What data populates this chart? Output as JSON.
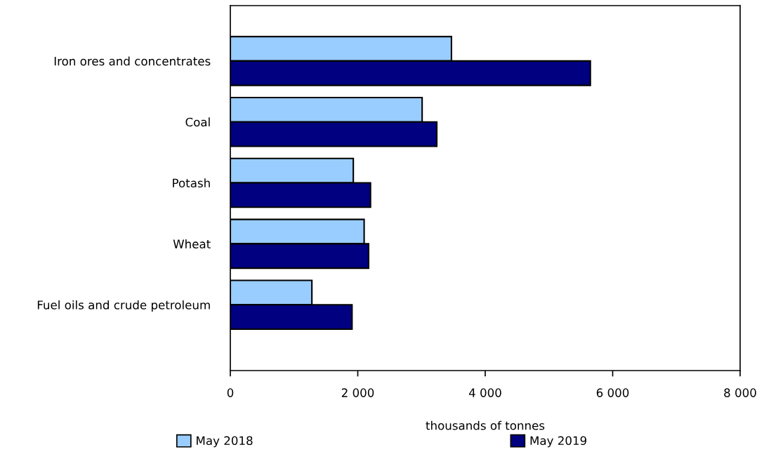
{
  "chart_data": {
    "type": "bar",
    "orientation": "horizontal",
    "categories": [
      "Iron ores and concentrates",
      "Coal",
      "Potash",
      "Wheat",
      "Fuel oils and crude petroleum"
    ],
    "series": [
      {
        "name": "May 2018",
        "color": "#99ccff",
        "values": [
          3470,
          3010,
          1930,
          2100,
          1280
        ]
      },
      {
        "name": "May 2019",
        "color": "#000080",
        "values": [
          5650,
          3240,
          2200,
          2170,
          1910
        ]
      }
    ],
    "xlabel": "thousands of tonnes",
    "xlim": [
      0,
      8000
    ],
    "xticks": [
      0,
      {
        "value": 2000,
        "label": "2 000"
      },
      {
        "value": 4000,
        "label": "4 000"
      },
      {
        "value": 6000,
        "label": "6 000"
      },
      {
        "value": 8000,
        "label": "8 000"
      }
    ],
    "grid": false,
    "legend": "bottom"
  }
}
